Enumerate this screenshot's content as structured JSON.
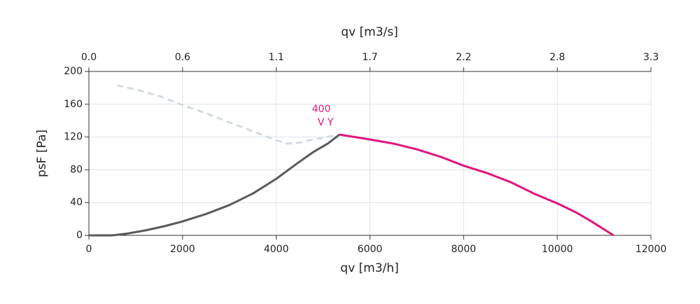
{
  "chart_data": {
    "type": "line",
    "x_label": "qv [m3/h]",
    "x2_label": "qv [m3/s]",
    "y_label": "psF [Pa]",
    "xlim": [
      0,
      12000
    ],
    "xticks": [
      0,
      2000,
      4000,
      6000,
      8000,
      10000,
      12000
    ],
    "x2lim": [
      0,
      3.3333
    ],
    "x2ticks": [
      {
        "value": 0,
        "label": "0.0"
      },
      {
        "value": 0.5556,
        "label": "0.6"
      },
      {
        "value": 1.1111,
        "label": "1.1"
      },
      {
        "value": 1.6667,
        "label": "1.7"
      },
      {
        "value": 2.2222,
        "label": "2.2"
      },
      {
        "value": 2.7778,
        "label": "2.8"
      },
      {
        "value": 3.3333,
        "label": "3.3"
      }
    ],
    "ylim": [
      0,
      200
    ],
    "yticks": [
      0,
      40,
      80,
      120,
      160,
      200
    ],
    "grid": true,
    "series": [
      {
        "color": "#d3dae3",
        "dashed": true,
        "x": [
          600,
          1000,
          1500,
          2000,
          2500,
          3000,
          3500,
          4000,
          4230,
          4500,
          4700,
          5000,
          5350
        ],
        "values": [
          183,
          178,
          170,
          159,
          149,
          138,
          127,
          116,
          112,
          113,
          116,
          119,
          123
        ]
      },
      {
        "color": "#5a5a5a",
        "x": [
          0,
          500,
          800,
          1200,
          1600,
          2000,
          2500,
          3000,
          3500,
          4000,
          4500,
          4800,
          5100,
          5350
        ],
        "values": [
          0,
          0,
          2,
          6,
          11,
          17,
          26,
          37,
          51,
          69,
          90,
          102,
          112,
          123
        ]
      },
      {
        "color": "#e0157f",
        "x": [
          5350,
          6000,
          6500,
          7000,
          7500,
          8000,
          8500,
          9000,
          9500,
          10000,
          10400,
          10700,
          11200
        ],
        "values": [
          123,
          117,
          112,
          105,
          96,
          85,
          76,
          65,
          51,
          39,
          28,
          18,
          0
        ]
      }
    ],
    "annotations": [
      {
        "text": "400",
        "color": "#e0157f"
      },
      {
        "text": "V Y",
        "color": "#e0157f"
      }
    ]
  }
}
